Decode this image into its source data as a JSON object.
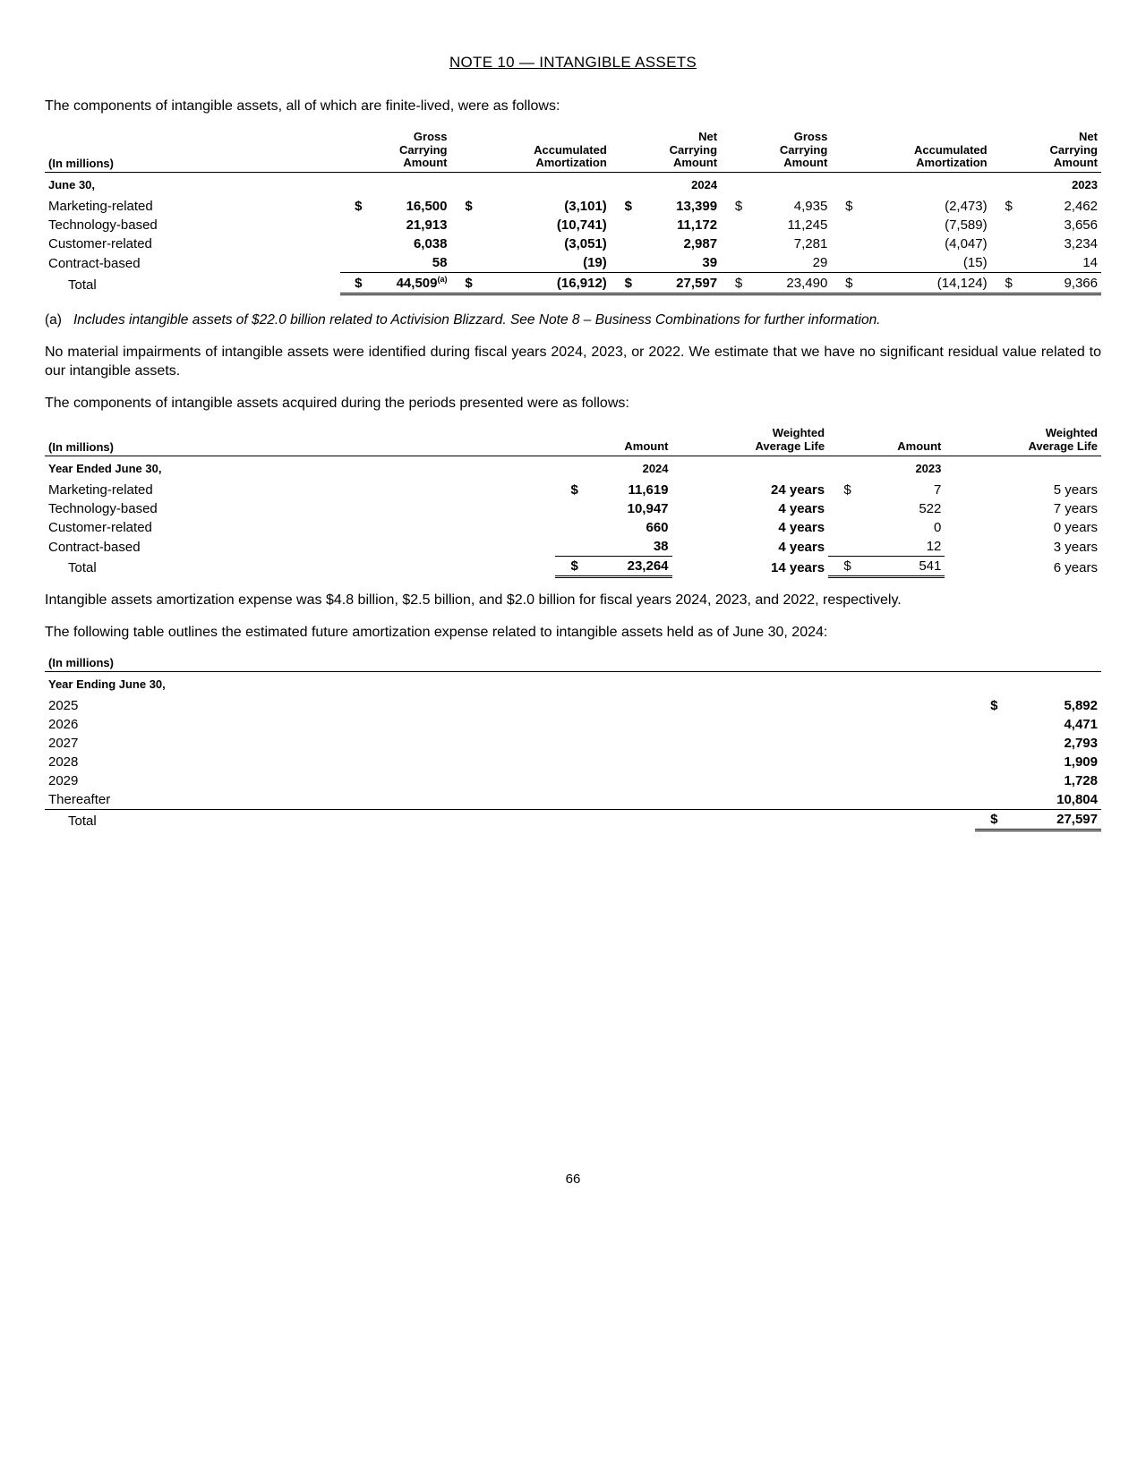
{
  "title": "NOTE 10 — INTANGIBLE ASSETS",
  "p1": "The components of intangible assets, all of which are finite-lived, were as follows:",
  "t1": {
    "unit_label": "(In millions)",
    "col_headers": {
      "gross": "Gross\nCarrying\nAmount",
      "accum": "Accumulated\nAmortization",
      "net": "Net\nCarrying\nAmount"
    },
    "date_label": "June 30,",
    "year_2024": "2024",
    "year_2023": "2023",
    "rows": [
      {
        "label": "Marketing-related",
        "g24": "16,500",
        "a24": "(3,101)",
        "n24": "13,399",
        "g23": "4,935",
        "a23": "(2,473)",
        "n23": "2,462"
      },
      {
        "label": "Technology-based",
        "g24": "21,913",
        "a24": "(10,741)",
        "n24": "11,172",
        "g23": "11,245",
        "a23": "(7,589)",
        "n23": "3,656"
      },
      {
        "label": "Customer-related",
        "g24": "6,038",
        "a24": "(3,051)",
        "n24": "2,987",
        "g23": "7,281",
        "a23": "(4,047)",
        "n23": "3,234"
      },
      {
        "label": "Contract-based",
        "g24": "58",
        "a24": "(19)",
        "n24": "39",
        "g23": "29",
        "a23": "(15)",
        "n23": "14"
      }
    ],
    "total_label": "Total",
    "total": {
      "g24": "44,509",
      "a24": "(16,912)",
      "n24": "27,597",
      "g23": "23,490",
      "a23": "(14,124)",
      "n23": "9,366"
    },
    "sup": "(a)"
  },
  "footnote_a_mark": "(a)",
  "footnote_a": "Includes intangible assets of $22.0 billion related to Activision Blizzard. See Note 8 – Business Combinations for further information.",
  "p2": "No material impairments of intangible assets were identified during fiscal years 2024, 2023, or 2022. We estimate that we have no significant residual value related to our intangible assets.",
  "p3": "The components of intangible assets acquired during the periods presented were as follows:",
  "t2": {
    "unit_label": "(In millions)",
    "col_amount": "Amount",
    "col_life": "Weighted\nAverage Life",
    "date_label": "Year Ended June 30,",
    "year_2024": "2024",
    "year_2023": "2023",
    "rows": [
      {
        "label": "Marketing-related",
        "a24": "11,619",
        "l24": "24 years",
        "a23": "7",
        "l23": "5 years"
      },
      {
        "label": "Technology-based",
        "a24": "10,947",
        "l24": "4 years",
        "a23": "522",
        "l23": "7 years"
      },
      {
        "label": "Customer-related",
        "a24": "660",
        "l24": "4 years",
        "a23": "0",
        "l23": "0 years"
      },
      {
        "label": "Contract-based",
        "a24": "38",
        "l24": "4 years",
        "a23": "12",
        "l23": "3 years"
      }
    ],
    "total_label": "Total",
    "total": {
      "a24": "23,264",
      "l24": "14 years",
      "a23": "541",
      "l23": "6 years"
    }
  },
  "p4": "Intangible assets amortization expense was $4.8 billion, $2.5 billion, and $2.0 billion for fiscal years 2024, 2023, and 2022, respectively.",
  "p5": "The following table outlines the estimated future amortization expense related to intangible assets held as of June 30, 2024:",
  "t3": {
    "unit_label": "(In millions)",
    "date_label": "Year Ending June 30,",
    "rows": [
      {
        "y": "2025",
        "v": "5,892"
      },
      {
        "y": "2026",
        "v": "4,471"
      },
      {
        "y": "2027",
        "v": "2,793"
      },
      {
        "y": "2028",
        "v": "1,909"
      },
      {
        "y": "2029",
        "v": "1,728"
      },
      {
        "y": "Thereafter",
        "v": "10,804"
      }
    ],
    "total_label": "Total",
    "total": "27,597"
  },
  "dollar": "$",
  "page_number": "66"
}
